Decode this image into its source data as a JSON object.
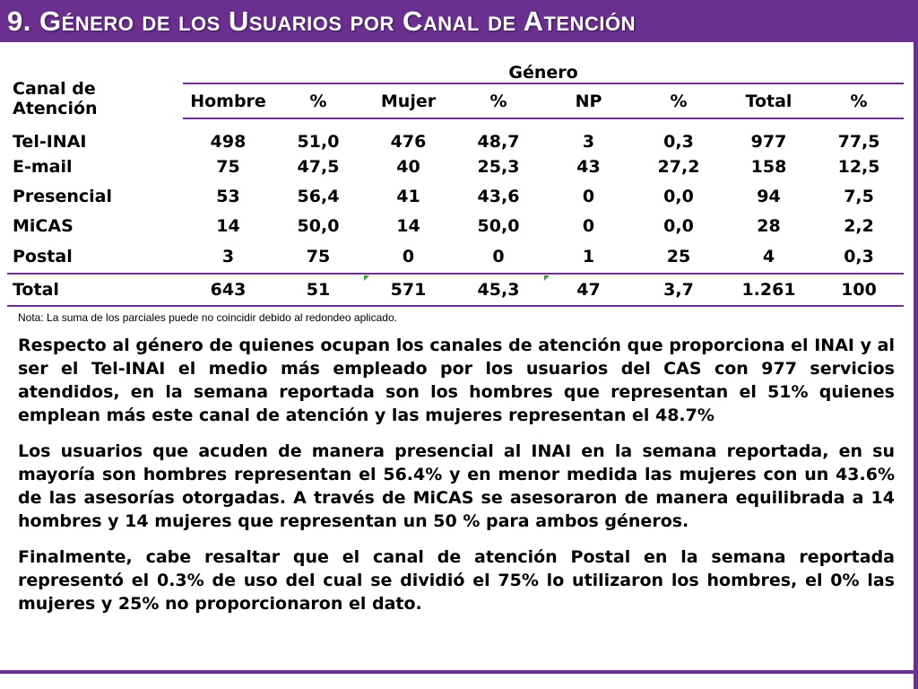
{
  "title": "9. Género de los Usuarios por Canal de Atención",
  "table": {
    "canal_header": "Canal de Atención",
    "group_header": "Género",
    "columns": [
      "Hombre",
      "%",
      "Mujer",
      "%",
      "NP",
      "%",
      "Total",
      "%"
    ],
    "rows": [
      {
        "canal": "Tel-INAI",
        "values": [
          "498",
          "51,0",
          "476",
          "48,7",
          "3",
          "0,3",
          "977",
          "77,5"
        ]
      },
      {
        "canal": "E-mail",
        "values": [
          "75",
          "47,5",
          "40",
          "25,3",
          "43",
          "27,2",
          "158",
          "12,5"
        ]
      },
      {
        "canal": "Presencial",
        "values": [
          "53",
          "56,4",
          "41",
          "43,6",
          "0",
          "0,0",
          "94",
          "7,5"
        ]
      },
      {
        "canal": "MiCAS",
        "values": [
          "14",
          "50,0",
          "14",
          "50,0",
          "0",
          "0,0",
          "28",
          "2,2"
        ]
      },
      {
        "canal": "Postal",
        "values": [
          "3",
          "75",
          "0",
          "0",
          "1",
          "25",
          "4",
          "0,3"
        ]
      }
    ],
    "total": {
      "canal": "Total",
      "values": [
        "643",
        "51",
        "571",
        "45,3",
        "47",
        "3,7",
        "1.261",
        "100"
      ]
    }
  },
  "note": "Nota: La suma de los parciales puede no coincidir debido al redondeo aplicado.",
  "paragraphs": [
    "Respecto al género de quienes ocupan los canales de atención que proporciona el INAI y al ser el Tel-INAI el medio más empleado por los usuarios del CAS con 977 servicios atendidos, en la semana reportada son los hombres que representan el 51% quienes emplean más este canal de atención y las mujeres representan el 48.7%",
    "Los usuarios que acuden de manera presencial al INAI en la semana reportada, en su mayoría son hombres representan el 56.4% y en menor medida las mujeres con un 43.6% de las asesorías otorgadas. A través de MiCAS se asesoraron de manera equilibrada a 14 hombres y 14 mujeres que representan un 50 % para ambos géneros.",
    "Finalmente, cabe resaltar que el canal de atención Postal en la semana reportada representó el 0.3% de uso del cual se dividió el 75% lo utilizaron los hombres, el 0% las mujeres y 25% no proporcionaron el dato."
  ],
  "colors": {
    "accent": "#6a2f8f",
    "marker": "#3a9a3a"
  }
}
